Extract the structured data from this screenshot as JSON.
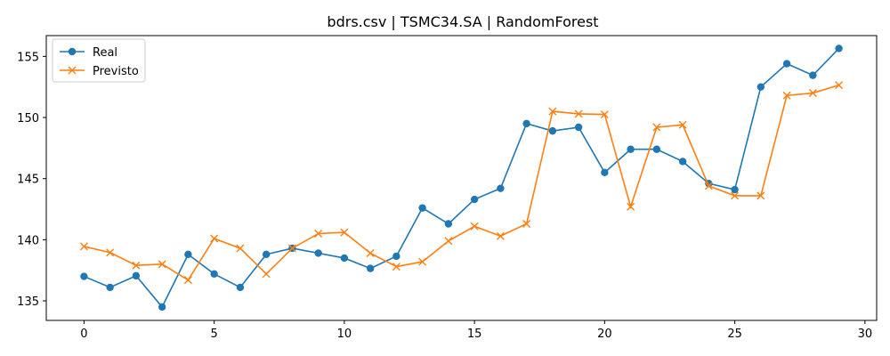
{
  "chart_data": {
    "type": "line",
    "title": "bdrs.csv | TSMC34.SA | RandomForest",
    "xlabel": "",
    "ylabel": "",
    "xlim": [
      -1.45,
      30.45
    ],
    "ylim": [
      133.4,
      156.7
    ],
    "x_ticks": [
      0,
      5,
      10,
      15,
      20,
      25,
      30
    ],
    "y_ticks": [
      135,
      140,
      145,
      150,
      155
    ],
    "grid": false,
    "legend_position": "top-left",
    "x": [
      0,
      1,
      2,
      3,
      4,
      5,
      6,
      7,
      8,
      9,
      10,
      11,
      12,
      13,
      14,
      15,
      16,
      17,
      18,
      19,
      20,
      21,
      22,
      23,
      24,
      25,
      26,
      27,
      28,
      29
    ],
    "series": [
      {
        "name": "Real",
        "color": "#1f77b4",
        "marker": "circle",
        "values": [
          137.0,
          136.1,
          137.05,
          134.5,
          138.8,
          137.2,
          136.1,
          138.8,
          139.3,
          138.9,
          138.5,
          137.65,
          138.65,
          142.6,
          141.3,
          143.3,
          144.2,
          149.5,
          148.9,
          149.2,
          145.5,
          147.4,
          147.4,
          146.4,
          144.6,
          144.1,
          152.5,
          154.4,
          153.45,
          155.65
        ]
      },
      {
        "name": "Previsto",
        "color": "#ff7f0e",
        "marker": "x",
        "values": [
          139.45,
          138.95,
          137.9,
          138.0,
          136.7,
          140.1,
          139.3,
          137.2,
          139.3,
          140.5,
          140.6,
          138.9,
          137.8,
          138.2,
          139.9,
          141.1,
          140.3,
          141.3,
          150.5,
          150.3,
          150.25,
          142.7,
          149.2,
          149.4,
          144.4,
          143.6,
          143.6,
          151.8,
          152.0,
          152.65
        ]
      }
    ]
  }
}
